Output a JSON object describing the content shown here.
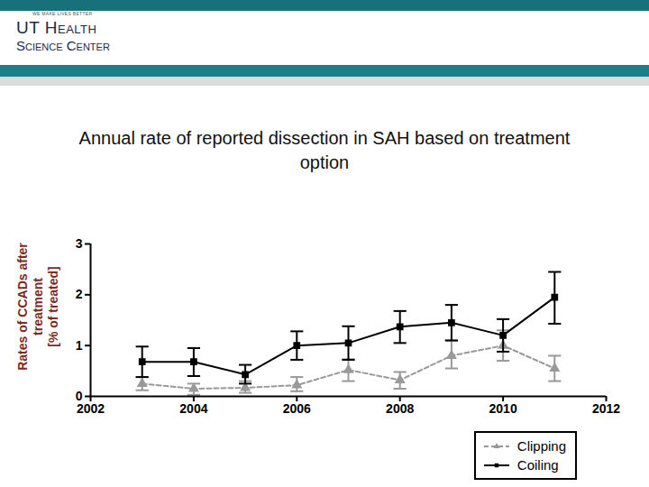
{
  "header": {
    "tagline": "WE MAKE LIVES BETTER",
    "logo": [
      "UT Health",
      "Science Center"
    ]
  },
  "chart_data": {
    "type": "line",
    "title": "Annual rate of reported dissection in SAH based on treatment option",
    "ylabel": "Rates of CCADs after treatment [% of treated]",
    "x": [
      2003,
      2004,
      2005,
      2006,
      2007,
      2008,
      2009,
      2010,
      2011
    ],
    "xlim": [
      2002,
      2012
    ],
    "xticks": [
      2002,
      2004,
      2006,
      2008,
      2010,
      2012
    ],
    "ylim": [
      0,
      3
    ],
    "yticks": [
      0,
      1,
      2,
      3
    ],
    "grid": false,
    "legend": "bottom-right",
    "series": [
      {
        "name": "Clipping",
        "color": "#999999",
        "line_style": "dashed",
        "marker": "triangle",
        "values": [
          0.25,
          0.15,
          0.17,
          0.22,
          0.52,
          0.32,
          0.8,
          1.0,
          0.55
        ],
        "error_low": [
          0.12,
          0.03,
          0.07,
          0.1,
          0.3,
          0.15,
          0.55,
          0.7,
          0.3
        ],
        "error_high": [
          0.38,
          0.25,
          0.3,
          0.38,
          0.73,
          0.48,
          1.1,
          1.3,
          0.8
        ]
      },
      {
        "name": "Coiling",
        "color": "#000000",
        "line_style": "solid",
        "marker": "square",
        "values": [
          0.68,
          0.68,
          0.43,
          1.0,
          1.05,
          1.37,
          1.45,
          1.2,
          1.95
        ],
        "error_low": [
          0.38,
          0.4,
          0.25,
          0.72,
          0.72,
          1.05,
          1.1,
          0.88,
          1.43
        ],
        "error_high": [
          0.98,
          0.95,
          0.62,
          1.28,
          1.38,
          1.68,
          1.8,
          1.52,
          2.45
        ]
      }
    ]
  }
}
